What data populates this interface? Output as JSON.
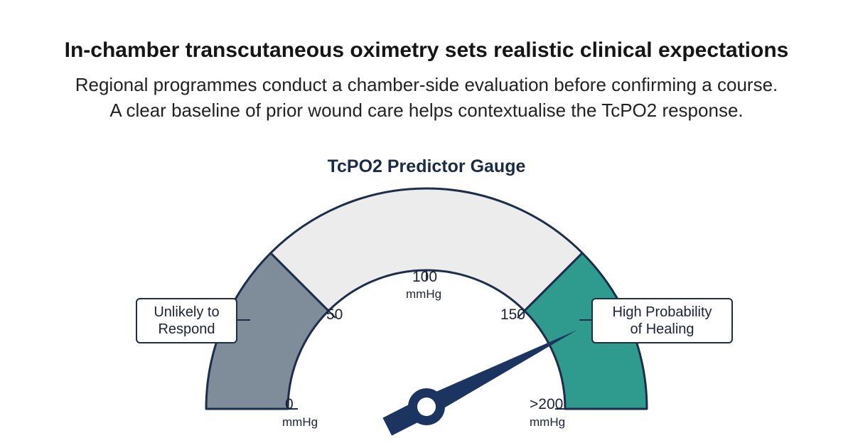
{
  "header": {
    "title": "In-chamber transcutaneous oximetry sets realistic clinical expectations",
    "subtitle_lines": [
      "Regional programmes conduct a chamber-side evaluation before confirming a course.",
      "A clear baseline of prior wound care helps contextualise the TcPO2 response."
    ]
  },
  "gauge": {
    "title": "TcPO2 Predictor Gauge",
    "scale_min": 0,
    "scale_max": 200,
    "needle_value": 170,
    "zones": [
      {
        "name": "low",
        "from": 0,
        "to": 50,
        "color": "#7f8c99"
      },
      {
        "name": "mid",
        "from": 50,
        "to": 150,
        "color": "#ececed"
      },
      {
        "name": "high",
        "from": 150,
        "to": 200,
        "color": "#2f9a8e"
      }
    ],
    "outline_color": "#1c2e4a",
    "needle_color": "#1c3560",
    "ticks": {
      "t0": {
        "value": "0",
        "unit": "mmHg"
      },
      "t50": {
        "value": "50"
      },
      "t100": {
        "value": "100",
        "unit": "mmHg"
      },
      "t150": {
        "value": "150"
      },
      "t200": {
        "value": ">200",
        "unit": "mmHg"
      }
    },
    "labels": {
      "low": [
        "Unlikely to",
        "Respond"
      ],
      "high": [
        "High Probability",
        "of Healing"
      ]
    }
  }
}
